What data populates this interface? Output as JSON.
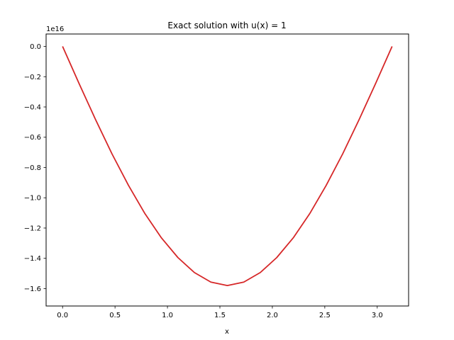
{
  "chart_data": {
    "type": "line",
    "title": "Exact solution with u(x) = 1",
    "xlabel": "x",
    "ylabel": "",
    "y_offset_label": "1e16",
    "xlim": [
      -0.157,
      3.299
    ],
    "ylim": [
      -1.715,
      0.082
    ],
    "x_ticks": [
      0.0,
      0.5,
      1.0,
      1.5,
      2.0,
      2.5,
      3.0
    ],
    "x_tick_labels": [
      "0.0",
      "0.5",
      "1.0",
      "1.5",
      "2.0",
      "2.5",
      "3.0"
    ],
    "y_ticks": [
      0.0,
      -0.2,
      -0.4,
      -0.6,
      -0.8,
      -1.0,
      -1.2,
      -1.4,
      -1.6
    ],
    "y_tick_labels": [
      "0.0",
      "−0.2",
      "−0.4",
      "−0.6",
      "−0.8",
      "−1.0",
      "−1.2",
      "−1.4",
      "−1.6"
    ],
    "grid": false,
    "series": [
      {
        "color": "#d62728",
        "x": [
          0.0,
          0.1571,
          0.3142,
          0.4712,
          0.6283,
          0.7854,
          0.9425,
          1.0996,
          1.2566,
          1.4137,
          1.5708,
          1.7279,
          1.885,
          2.042,
          2.1991,
          2.3562,
          2.5133,
          2.6704,
          2.8274,
          2.9845,
          3.1416
        ],
        "y": [
          0.0,
          -0.245,
          -0.483,
          -0.71,
          -0.918,
          -1.105,
          -1.265,
          -1.395,
          -1.494,
          -1.557,
          -1.58,
          -1.557,
          -1.494,
          -1.395,
          -1.265,
          -1.105,
          -0.918,
          -0.71,
          -0.483,
          -0.245,
          0.0
        ]
      }
    ]
  }
}
